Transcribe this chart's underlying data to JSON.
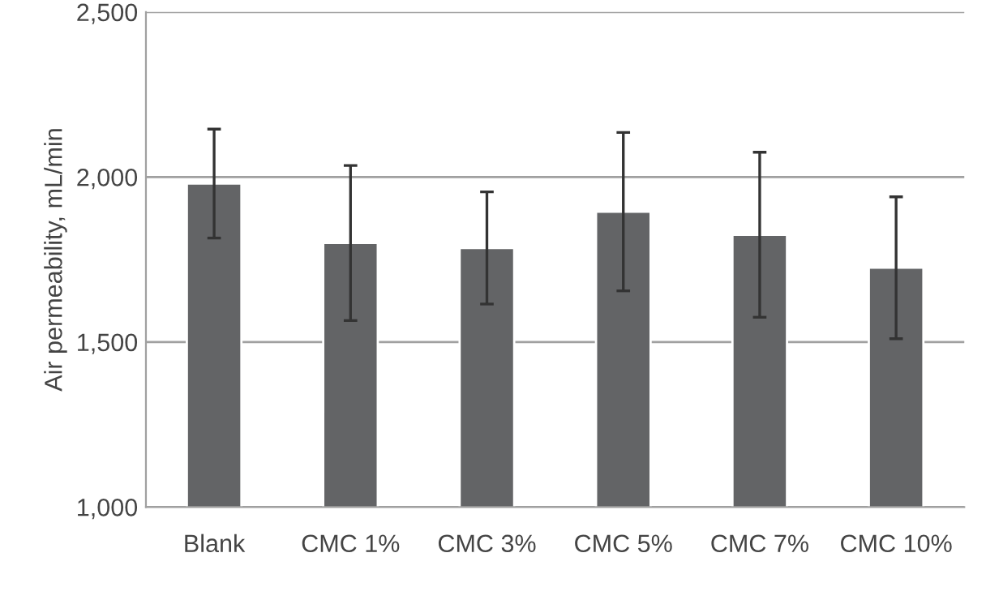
{
  "chart_data": {
    "type": "bar",
    "ylabel": "Air permeability, mL/min",
    "categories": [
      "Blank",
      "CMC 1%",
      "CMC 3%",
      "CMC 5%",
      "CMC 7%",
      "CMC 10%"
    ],
    "values": [
      1980,
      1800,
      1785,
      1895,
      1825,
      1725
    ],
    "errors": [
      165,
      235,
      170,
      240,
      250,
      215
    ],
    "color": "#636466",
    "ylim": [
      1000,
      2500
    ],
    "yticks": [
      {
        "value": 1000,
        "label": "1,000"
      },
      {
        "value": 1500,
        "label": "1,500"
      },
      {
        "value": 2000,
        "label": "2,000"
      },
      {
        "value": 2500,
        "label": "2,500"
      }
    ],
    "grid": "y"
  }
}
